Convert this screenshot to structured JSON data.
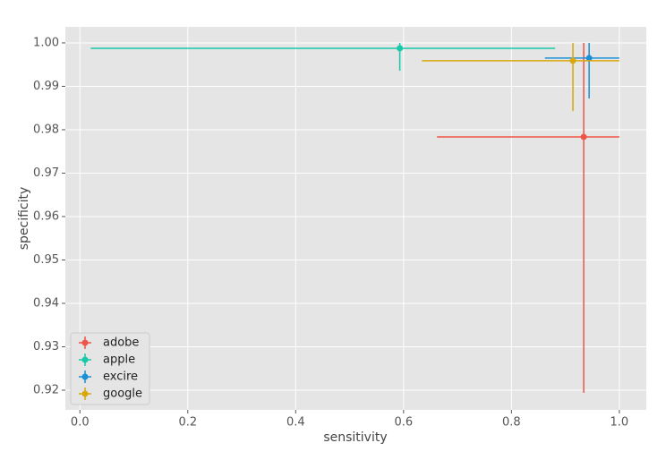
{
  "chart_data": {
    "type": "errorbar",
    "x_label": "sensitivity",
    "y_label": "specificity",
    "xlim": [
      -0.027,
      1.05
    ],
    "ylim": [
      0.91546,
      1.0037
    ],
    "xticks": [
      {
        "value": 0,
        "label": "0.0"
      },
      0.2,
      0.4,
      0.6,
      0.8,
      {
        "value": 1,
        "label": "1.0"
      }
    ],
    "yticks": [
      0.92,
      0.93,
      0.94,
      0.95,
      0.96,
      0.97,
      0.98,
      0.99,
      {
        "value": 1,
        "label": "1.00"
      }
    ],
    "grid": true,
    "legend": "lower left",
    "series": [
      {
        "name": "adobe",
        "color": "#ee5447",
        "x": 0.934,
        "y": 0.97835,
        "x_lower": 0.662,
        "x_upper": 1.0,
        "y_lower": 0.9194,
        "y_upper": 1.0
      },
      {
        "name": "apple",
        "color": "#17c9a9",
        "x": 0.593,
        "y": 0.99876,
        "x_lower": 0.02,
        "x_upper": 0.881,
        "y_lower": 0.9936,
        "y_upper": 1.0
      },
      {
        "name": "excire",
        "color": "#1a8fd6",
        "x": 0.944,
        "y": 0.9965,
        "x_lower": 0.862,
        "x_upper": 1.0,
        "y_lower": 0.9872,
        "y_upper": 1.0
      },
      {
        "name": "google",
        "color": "#d9a70e",
        "x": 0.914,
        "y": 0.9959,
        "x_lower": 0.634,
        "x_upper": 1.0,
        "y_lower": 0.9843,
        "y_upper": 1.0
      }
    ]
  }
}
